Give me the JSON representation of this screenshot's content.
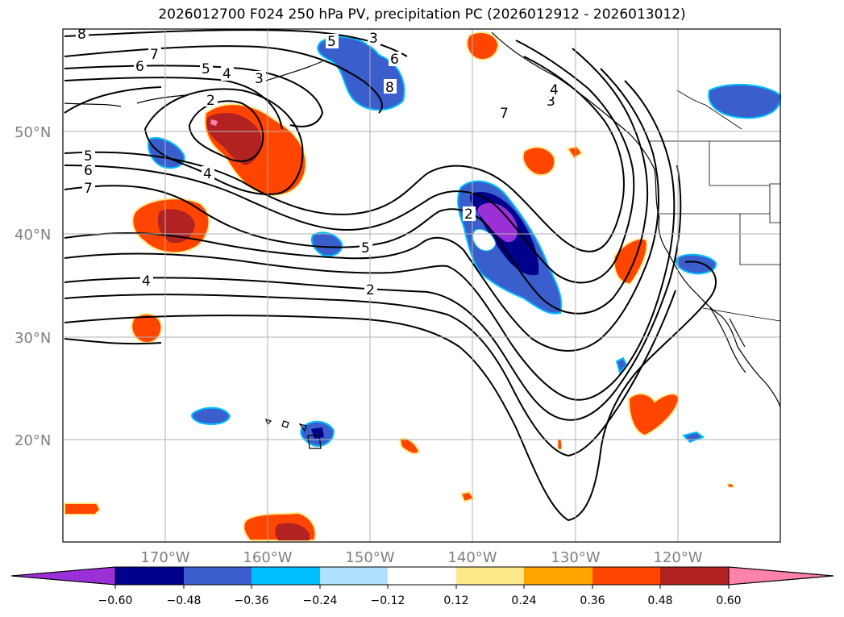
{
  "title": "2026012700 F024 250 hPa PV, precipitation PC (2026012912 - 2026013012)",
  "map": {
    "lat_labels": [
      "50°N",
      "40°N",
      "30°N",
      "20°N"
    ],
    "lon_labels": [
      "170°W",
      "160°W",
      "150°W",
      "140°W",
      "130°W",
      "120°W"
    ],
    "contour_labels": [
      "8",
      "7",
      "6",
      "5",
      "4",
      "3",
      "2",
      "5",
      "6",
      "7",
      "4",
      "3",
      "5",
      "6",
      "8",
      "7",
      "3",
      "4",
      "2",
      "5",
      "2",
      "4"
    ]
  },
  "colorbar": {
    "ticks": [
      "−0.60",
      "−0.48",
      "−0.36",
      "−0.24",
      "−0.12",
      "0.12",
      "0.24",
      "0.36",
      "0.48",
      "0.60"
    ],
    "colors": [
      "#9b30d9",
      "#00008b",
      "#3a5fcd",
      "#00bfff",
      "#b0e2ff",
      "#ffffff",
      "#ffe88a",
      "#ffa500",
      "#ff4500",
      "#b22222",
      "#ff82ab"
    ]
  },
  "colors": {
    "contour": "#000000",
    "grid": "#b0b0b0",
    "coast": "#000000"
  }
}
